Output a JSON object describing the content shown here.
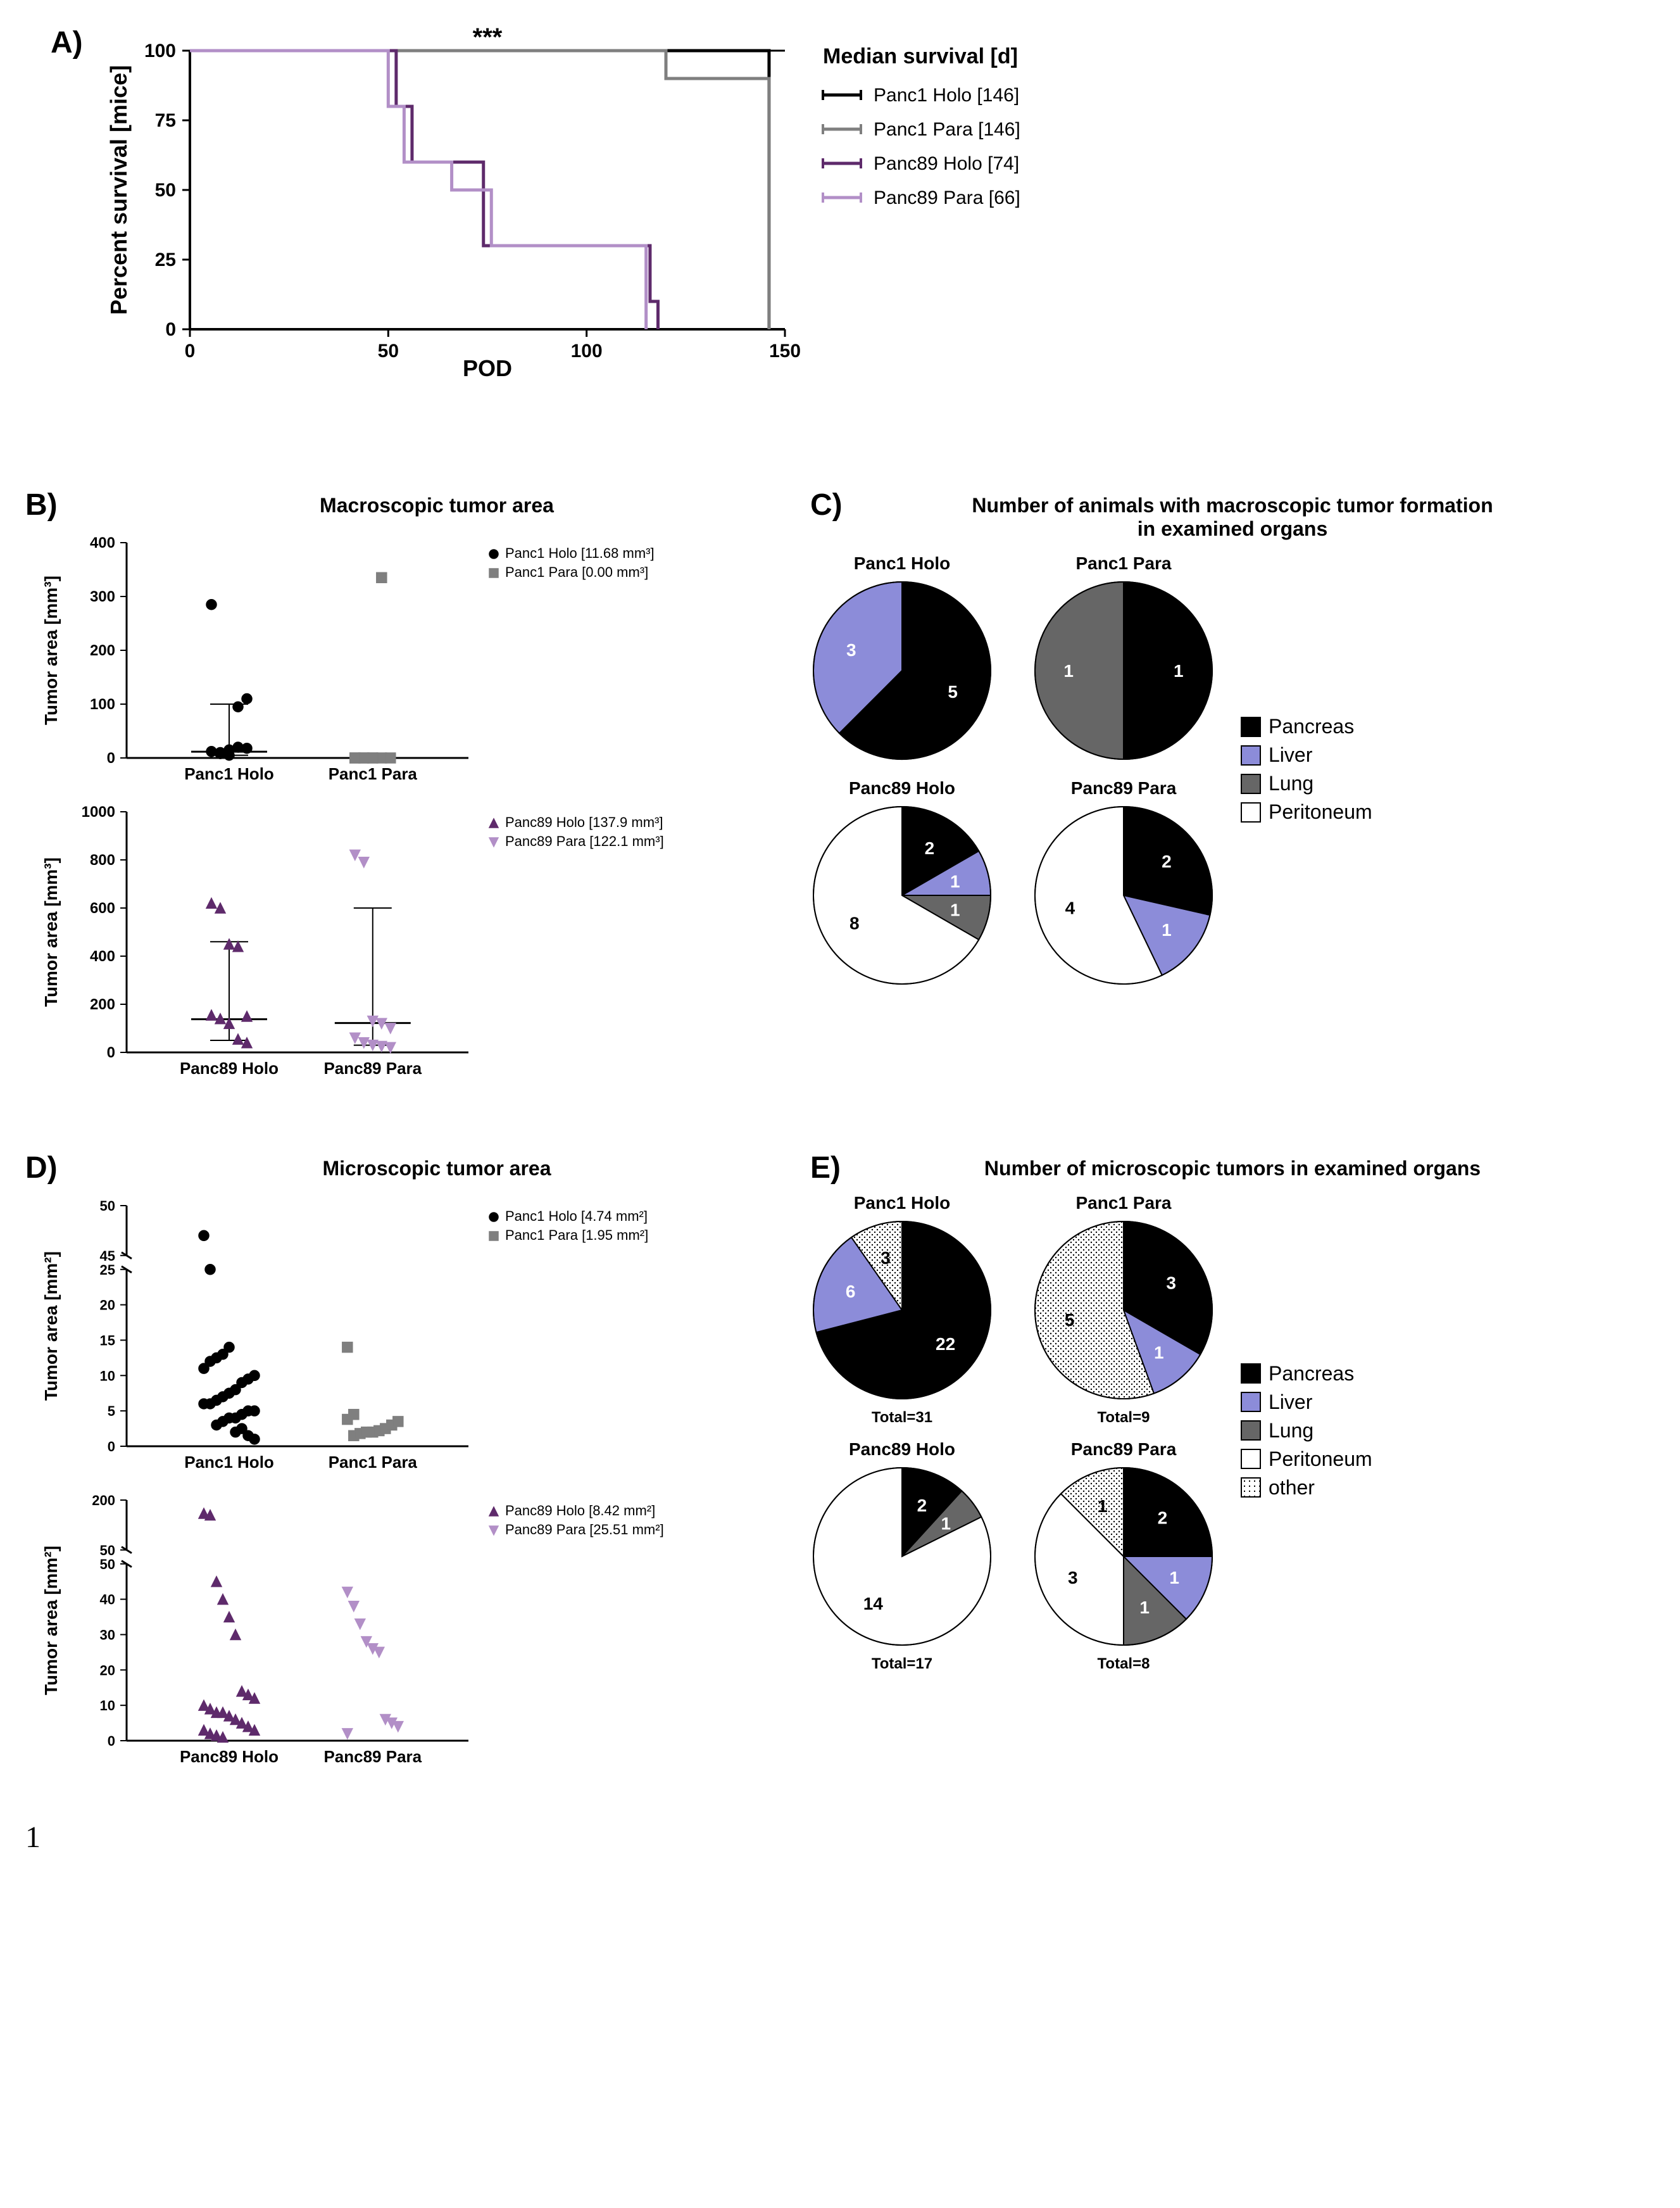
{
  "palette": {
    "panc1_holo": "#000000",
    "panc1_para": "#7f7f7f",
    "panc89_holo": "#5e2a6b",
    "panc89_para": "#b28fc7",
    "pancreas": "#000000",
    "liver": "#8c8cd9",
    "lung": "#666666",
    "peritoneum": "#ffffff",
    "other_pattern": "dots",
    "axis": "#000000",
    "bg": "#ffffff"
  },
  "panelA": {
    "label": "A)",
    "significance": "***",
    "legend_title": "Median survival [d]",
    "xlabel": "POD",
    "ylabel": "Percent survival [mice]",
    "xlim": [
      0,
      150
    ],
    "xticks": [
      0,
      50,
      100,
      150
    ],
    "ylim": [
      0,
      100
    ],
    "yticks": [
      0,
      25,
      50,
      75,
      100
    ],
    "series": [
      {
        "name": "Panc1 Holo [146]",
        "color": "#000000",
        "steps": [
          [
            0,
            100
          ],
          [
            146,
            100
          ],
          [
            146,
            0
          ]
        ]
      },
      {
        "name": "Panc1 Para [146]",
        "color": "#7f7f7f",
        "steps": [
          [
            0,
            100
          ],
          [
            120,
            100
          ],
          [
            120,
            90
          ],
          [
            146,
            90
          ],
          [
            146,
            0
          ]
        ]
      },
      {
        "name": "Panc89 Holo [74]",
        "color": "#5e2a6b",
        "steps": [
          [
            0,
            100
          ],
          [
            52,
            100
          ],
          [
            52,
            80
          ],
          [
            56,
            80
          ],
          [
            56,
            60
          ],
          [
            74,
            60
          ],
          [
            74,
            30
          ],
          [
            116,
            30
          ],
          [
            116,
            10
          ],
          [
            118,
            10
          ],
          [
            118,
            0
          ]
        ]
      },
      {
        "name": "Panc89 Para [66]",
        "color": "#b28fc7",
        "steps": [
          [
            0,
            100
          ],
          [
            50,
            100
          ],
          [
            50,
            80
          ],
          [
            54,
            80
          ],
          [
            54,
            60
          ],
          [
            66,
            60
          ],
          [
            66,
            50
          ],
          [
            76,
            50
          ],
          [
            76,
            30
          ],
          [
            115,
            30
          ],
          [
            115,
            0
          ]
        ]
      }
    ]
  },
  "panelB": {
    "label": "B)",
    "title": "Macroscopic tumor area",
    "ylabel": "Tumor area [mm³]",
    "top": {
      "groups": [
        "Panc1 Holo",
        "Panc1 Para"
      ],
      "ylim": [
        0,
        400
      ],
      "yticks": [
        0,
        100,
        200,
        300,
        400
      ],
      "legend": [
        "Panc1 Holo [11.68 mm³]",
        "Panc1 Para [0.00 mm³]"
      ],
      "colors": [
        "#000000",
        "#7f7f7f"
      ],
      "markers": [
        "circle",
        "square"
      ],
      "medians": [
        11.68,
        0.0
      ],
      "iqr": [
        [
          5,
          100
        ],
        [
          0,
          5
        ]
      ],
      "points": [
        [
          12,
          8,
          5,
          95,
          110,
          285,
          10,
          15,
          20,
          18
        ],
        [
          0,
          0,
          0,
          0,
          0,
          0,
          0,
          0,
          335
        ]
      ]
    },
    "bottom": {
      "groups": [
        "Panc89 Holo",
        "Panc89 Para"
      ],
      "ylim": [
        0,
        1000
      ],
      "yticks": [
        0,
        200,
        400,
        600,
        800,
        1000
      ],
      "legend": [
        "Panc89 Holo [137.9 mm³]",
        "Panc89 Para [122.1 mm³]"
      ],
      "colors": [
        "#5e2a6b",
        "#b28fc7"
      ],
      "markers": [
        "triangle-up",
        "triangle-down"
      ],
      "medians": [
        137.9,
        122.1
      ],
      "iqr": [
        [
          50,
          460
        ],
        [
          30,
          600
        ]
      ],
      "points": [
        [
          620,
          600,
          450,
          440,
          150,
          155,
          140,
          120,
          55,
          40
        ],
        [
          820,
          790,
          130,
          120,
          100,
          60,
          40,
          30,
          25,
          20
        ]
      ]
    }
  },
  "panelC": {
    "label": "C)",
    "title": "Number of animals with macroscopic tumor formation\nin examined organs",
    "pie_titles": [
      "Panc1 Holo",
      "Panc1 Para",
      "Panc89 Holo",
      "Panc89 Para"
    ],
    "legend": [
      "Pancreas",
      "Liver",
      "Lung",
      "Peritoneum"
    ],
    "legend_colors": [
      "#000000",
      "#8c8cd9",
      "#666666",
      "#ffffff"
    ],
    "pies": [
      {
        "slices": [
          {
            "label": "5",
            "value": 5,
            "fill": "#000000",
            "text": "white"
          },
          {
            "label": "3",
            "value": 3,
            "fill": "#8c8cd9",
            "text": "white"
          }
        ]
      },
      {
        "slices": [
          {
            "label": "1",
            "value": 1,
            "fill": "#000000",
            "text": "white"
          },
          {
            "label": "1",
            "value": 1,
            "fill": "#666666",
            "text": "white"
          }
        ]
      },
      {
        "slices": [
          {
            "label": "2",
            "value": 2,
            "fill": "#000000",
            "text": "white"
          },
          {
            "label": "1",
            "value": 1,
            "fill": "#8c8cd9",
            "text": "white"
          },
          {
            "label": "1",
            "value": 1,
            "fill": "#666666",
            "text": "white"
          },
          {
            "label": "8",
            "value": 8,
            "fill": "#ffffff",
            "text": "black"
          }
        ]
      },
      {
        "slices": [
          {
            "label": "2",
            "value": 2,
            "fill": "#000000",
            "text": "white"
          },
          {
            "label": "1",
            "value": 1,
            "fill": "#8c8cd9",
            "text": "white"
          },
          {
            "label": "4",
            "value": 4,
            "fill": "#ffffff",
            "text": "black"
          }
        ]
      }
    ]
  },
  "panelD": {
    "label": "D)",
    "title": "Microscopic tumor area",
    "ylabel": "Tumor area [mm²]",
    "top": {
      "groups": [
        "Panc1 Holo",
        "Panc1 Para"
      ],
      "break": true,
      "ylim_low": [
        0,
        25
      ],
      "ylim_high": [
        45,
        50
      ],
      "yticks_low": [
        0,
        5,
        10,
        15,
        20,
        25
      ],
      "yticks_high": [
        45,
        50
      ],
      "legend": [
        "Panc1 Holo [4.74 mm²]",
        "Panc1 Para [1.95 mm²]"
      ],
      "colors": [
        "#000000",
        "#7f7f7f"
      ],
      "markers": [
        "circle",
        "square"
      ],
      "points": [
        [
          47,
          25,
          3,
          3.5,
          4,
          4,
          4.5,
          5,
          5,
          6,
          6,
          6.5,
          7,
          7.5,
          8,
          9,
          9.5,
          10,
          11,
          12,
          12.5,
          13,
          14,
          2,
          2.5,
          1.5,
          1
        ],
        [
          14,
          1.5,
          1.8,
          2,
          2,
          2.2,
          2.5,
          3,
          3.5,
          3.8,
          4.5
        ]
      ]
    },
    "bottom": {
      "groups": [
        "Panc89 Holo",
        "Panc89 Para"
      ],
      "break": true,
      "ylim_low": [
        0,
        50
      ],
      "ylim_high": [
        50,
        200
      ],
      "yticks_low": [
        0,
        10,
        20,
        30,
        40,
        50
      ],
      "yticks_high": [
        50,
        200
      ],
      "legend": [
        "Panc89 Holo [8.42 mm²]",
        "Panc89 Para [25.51 mm²]"
      ],
      "colors": [
        "#5e2a6b",
        "#b28fc7"
      ],
      "markers": [
        "triangle-up",
        "triangle-down"
      ],
      "points": [
        [
          160,
          155,
          45,
          40,
          35,
          30,
          14,
          13,
          12,
          10,
          9,
          8,
          8,
          7,
          6,
          5,
          4,
          3,
          3,
          2,
          1.5,
          1
        ],
        [
          42,
          38,
          33,
          28,
          26,
          25,
          6,
          5,
          4,
          2
        ]
      ]
    }
  },
  "panelE": {
    "label": "E)",
    "title": "Number of microscopic tumors in examined organs",
    "pie_titles": [
      "Panc1 Holo",
      "Panc1 Para",
      "Panc89 Holo",
      "Panc89 Para"
    ],
    "totals": [
      "Total=31",
      "Total=9",
      "Total=17",
      "Total=8"
    ],
    "legend": [
      "Pancreas",
      "Liver",
      "Lung",
      "Peritoneum",
      "other"
    ],
    "legend_colors": [
      "#000000",
      "#8c8cd9",
      "#666666",
      "#ffffff",
      "pattern"
    ],
    "pies": [
      {
        "slices": [
          {
            "label": "22",
            "value": 22,
            "fill": "#000000",
            "text": "white"
          },
          {
            "label": "6",
            "value": 6,
            "fill": "#8c8cd9",
            "text": "white"
          },
          {
            "label": "3",
            "value": 3,
            "fill": "pattern",
            "text": "black"
          }
        ]
      },
      {
        "slices": [
          {
            "label": "3",
            "value": 3,
            "fill": "#000000",
            "text": "white"
          },
          {
            "label": "1",
            "value": 1,
            "fill": "#8c8cd9",
            "text": "white"
          },
          {
            "label": "5",
            "value": 5,
            "fill": "pattern",
            "text": "black"
          }
        ]
      },
      {
        "slices": [
          {
            "label": "2",
            "value": 2,
            "fill": "#000000",
            "text": "white"
          },
          {
            "label": "1",
            "value": 1,
            "fill": "#666666",
            "text": "white"
          },
          {
            "label": "14",
            "value": 14,
            "fill": "#ffffff",
            "text": "black"
          }
        ]
      },
      {
        "slices": [
          {
            "label": "2",
            "value": 2,
            "fill": "#000000",
            "text": "white"
          },
          {
            "label": "1",
            "value": 1,
            "fill": "#8c8cd9",
            "text": "white"
          },
          {
            "label": "1",
            "value": 1,
            "fill": "#666666",
            "text": "white"
          },
          {
            "label": "3",
            "value": 3,
            "fill": "#ffffff",
            "text": "black"
          },
          {
            "label": "1",
            "value": 1,
            "fill": "pattern",
            "text": "black"
          }
        ]
      }
    ]
  },
  "page_number": "1"
}
